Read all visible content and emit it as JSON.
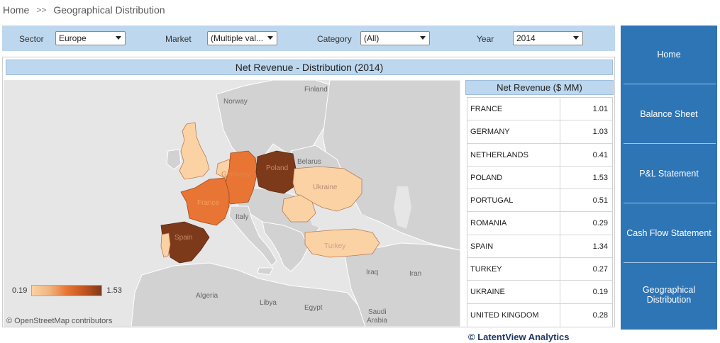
{
  "breadcrumb": {
    "home": "Home",
    "separator": ">>",
    "current": "Geographical Distribution"
  },
  "filters": [
    {
      "label": "Sector",
      "value": "Europe"
    },
    {
      "label": "Market",
      "value": "(Multiple val..."
    },
    {
      "label": "Category",
      "value": "(All)"
    },
    {
      "label": "Year",
      "value": "2014"
    }
  ],
  "panel_title": "Net Revenue - Distribution (2014)",
  "map": {
    "labels": {
      "finland": "Finland",
      "norway": "Norway",
      "belarus": "Belarus",
      "ukraine": "Ukraine",
      "poland": "Poland",
      "germany": "Germany",
      "france": "France",
      "italy": "Italy",
      "spain": "Spain",
      "turkey": "Turkey",
      "iraq": "Iraq",
      "iran": "Iran",
      "algeria": "Algeria",
      "libya": "Libya",
      "egypt": "Egypt",
      "saudi_arabia_1": "Saudi",
      "saudi_arabia_2": "Arabia"
    },
    "colors": {
      "sea": "#e6e6e6",
      "land": "#d2d2d2",
      "border": "#ffffff",
      "low": "#fbd2a4",
      "mid": "#e87534",
      "high": "#7d3a1a"
    },
    "legend": {
      "min": "0.19",
      "max": "1.53"
    },
    "attribution": "© OpenStreetMap contributors"
  },
  "table": {
    "header": "Net Revenue ($ MM)",
    "rows": [
      {
        "country": "FRANCE",
        "value": "1.01"
      },
      {
        "country": "GERMANY",
        "value": "1.03"
      },
      {
        "country": "NETHERLANDS",
        "value": "0.41"
      },
      {
        "country": "POLAND",
        "value": "1.53"
      },
      {
        "country": "PORTUGAL",
        "value": "0.51"
      },
      {
        "country": "ROMANIA",
        "value": "0.29"
      },
      {
        "country": "SPAIN",
        "value": "1.34"
      },
      {
        "country": "TURKEY",
        "value": "0.27"
      },
      {
        "country": "UKRAINE",
        "value": "0.19"
      },
      {
        "country": "UNITED KINGDOM",
        "value": "0.28"
      }
    ]
  },
  "nav": [
    {
      "label": "Home"
    },
    {
      "label": "Balance Sheet"
    },
    {
      "label": "P&L Statement"
    },
    {
      "label": "Cash Flow Statement"
    },
    {
      "label": "Geographical Distribution"
    }
  ],
  "footer": "© LatentView Analytics"
}
